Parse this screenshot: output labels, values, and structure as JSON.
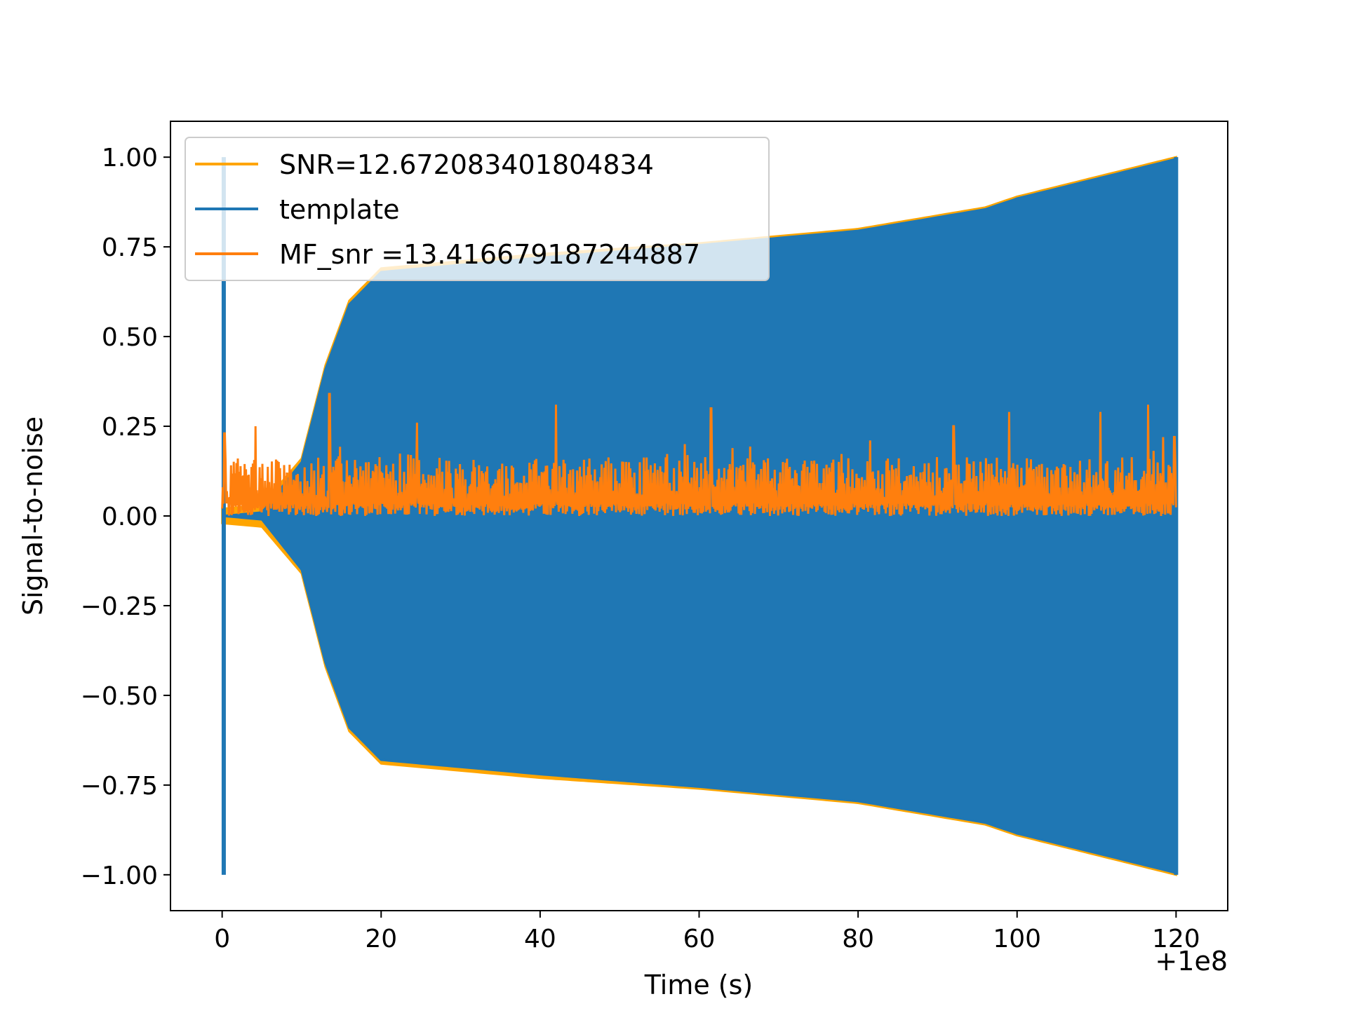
{
  "chart_data": {
    "type": "line",
    "xlabel": "Time (s)",
    "ylabel": "Signal-to-noise",
    "x_offset_label": "+1e8",
    "xlim": [
      -6.5,
      126.5
    ],
    "ylim": [
      -1.1,
      1.1
    ],
    "x_ticks": [
      0,
      20,
      40,
      60,
      80,
      100,
      120
    ],
    "x_tick_labels": [
      "0",
      "20",
      "40",
      "60",
      "80",
      "100",
      "120"
    ],
    "y_ticks": [
      1.0,
      0.75,
      0.5,
      0.25,
      0.0,
      -0.25,
      -0.5,
      -0.75,
      -1.0
    ],
    "y_tick_labels": [
      "1.00",
      "0.75",
      "0.50",
      "0.25",
      "0.00",
      "−0.25",
      "−0.50",
      "−0.75",
      "−1.00"
    ],
    "legend_position": "upper-left",
    "series": [
      {
        "name": "SNR=12.672083401804834",
        "color": "#ffa500",
        "kind": "envelope",
        "upper": [
          [
            0,
            0.02
          ],
          [
            5,
            0.03
          ],
          [
            10,
            0.16
          ],
          [
            13,
            0.42
          ],
          [
            16,
            0.6
          ],
          [
            20,
            0.69
          ],
          [
            25,
            0.7
          ],
          [
            40,
            0.73
          ],
          [
            60,
            0.76
          ],
          [
            80,
            0.8
          ],
          [
            96,
            0.86
          ],
          [
            100,
            0.89
          ],
          [
            120,
            1.0
          ]
        ],
        "lower": [
          [
            0,
            -0.02
          ],
          [
            5,
            -0.03
          ],
          [
            10,
            -0.16
          ],
          [
            13,
            -0.42
          ],
          [
            16,
            -0.6
          ],
          [
            20,
            -0.69
          ],
          [
            25,
            -0.7
          ],
          [
            40,
            -0.73
          ],
          [
            60,
            -0.76
          ],
          [
            80,
            -0.8
          ],
          [
            96,
            -0.86
          ],
          [
            100,
            -0.89
          ],
          [
            120,
            -1.0
          ]
        ]
      },
      {
        "name": "template",
        "color": "#1f77b4",
        "kind": "envelope",
        "upper": [
          [
            0,
            0.0
          ],
          [
            5,
            0.01
          ],
          [
            10,
            0.15
          ],
          [
            13,
            0.41
          ],
          [
            16,
            0.59
          ],
          [
            20,
            0.68
          ],
          [
            25,
            0.69
          ],
          [
            40,
            0.72
          ],
          [
            60,
            0.755
          ],
          [
            80,
            0.795
          ],
          [
            96,
            0.855
          ],
          [
            100,
            0.885
          ],
          [
            120,
            0.995
          ]
        ],
        "lower": [
          [
            0,
            0.0
          ],
          [
            5,
            -0.01
          ],
          [
            10,
            -0.15
          ],
          [
            13,
            -0.41
          ],
          [
            16,
            -0.59
          ],
          [
            20,
            -0.68
          ],
          [
            25,
            -0.69
          ],
          [
            40,
            -0.72
          ],
          [
            60,
            -0.755
          ],
          [
            80,
            -0.795
          ],
          [
            96,
            -0.855
          ],
          [
            100,
            -0.885
          ],
          [
            120,
            -0.995
          ]
        ],
        "spikes": [
          [
            0.2,
            1.0,
            -1.0
          ],
          [
            120.0,
            1.0,
            -1.0
          ]
        ]
      },
      {
        "name": " MF_snr =13.416679187244887",
        "color": "#ff7f0e",
        "kind": "noise",
        "x_range": [
          0,
          120
        ],
        "baseline": 0.0,
        "mean": 0.08,
        "peaks": [
          [
            0.3,
            0.23
          ],
          [
            4.2,
            0.25
          ],
          [
            13.5,
            0.34
          ],
          [
            24.5,
            0.26
          ],
          [
            42.0,
            0.31
          ],
          [
            61.5,
            0.3
          ],
          [
            92.0,
            0.25
          ],
          [
            99.0,
            0.29
          ],
          [
            110.5,
            0.29
          ],
          [
            116.5,
            0.31
          ],
          [
            119.8,
            0.22
          ]
        ]
      }
    ]
  }
}
